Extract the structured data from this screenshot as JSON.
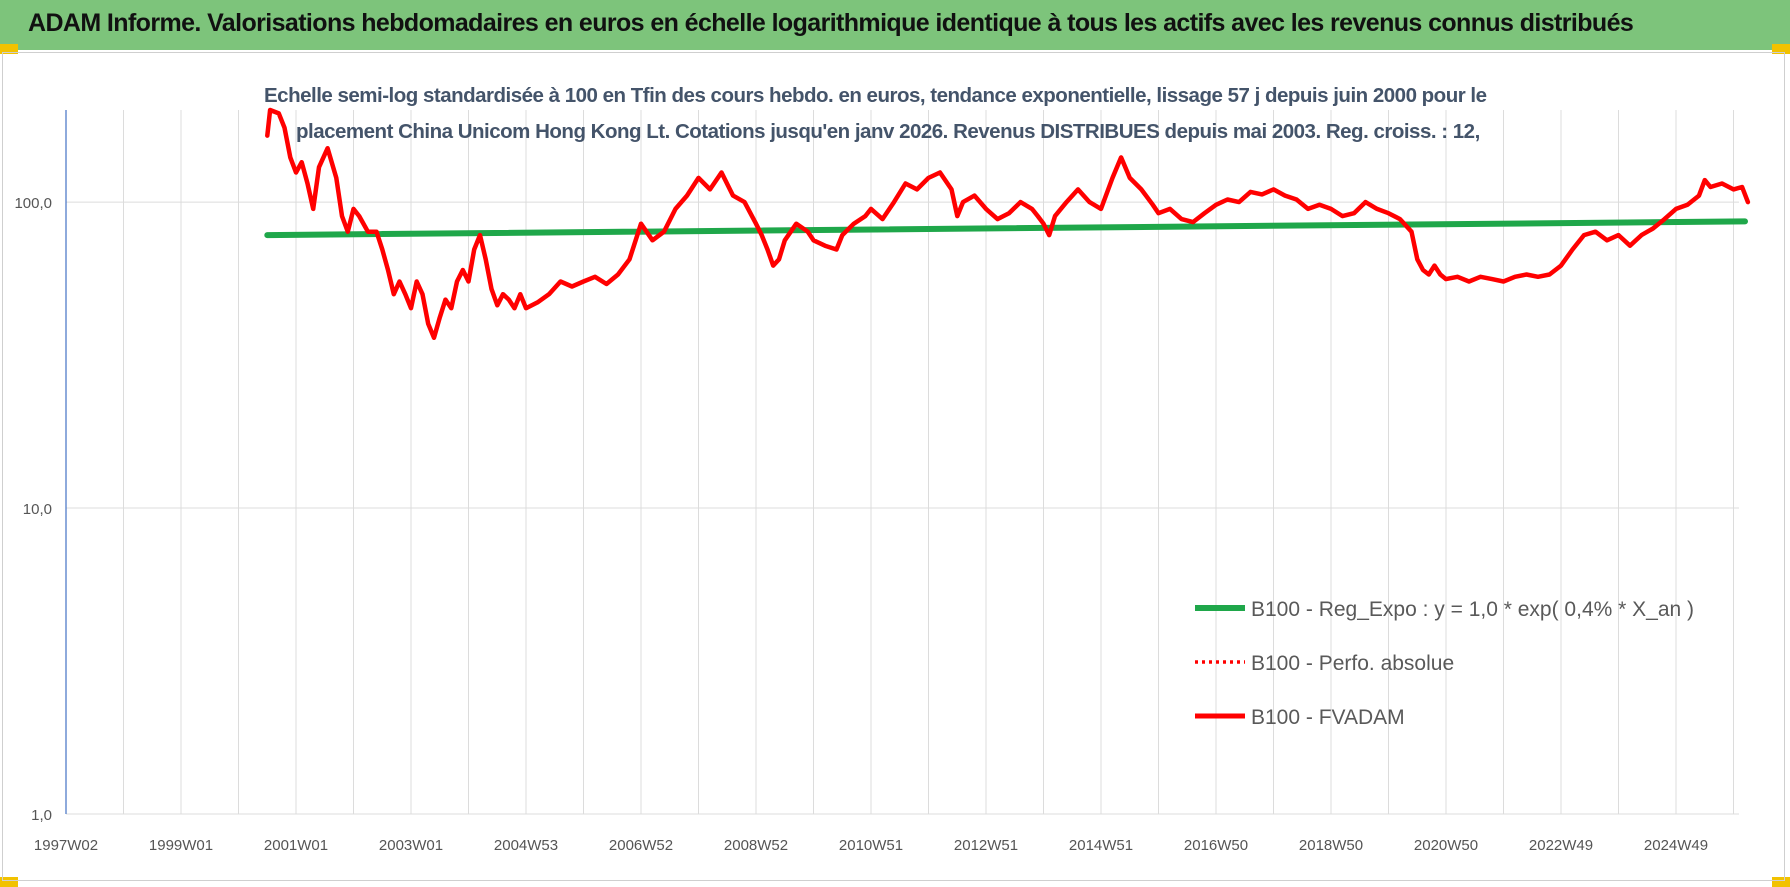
{
  "header": {
    "title": "ADAM Informe. Valorisations hebdomadaires en euros en échelle logarithmique identique à tous les actifs avec les revenus connus distribués"
  },
  "colors": {
    "header_bg": "#7dc47b",
    "accent": "#f2c200",
    "series_fvadam": "#ff0000",
    "series_reg": "#1fa74a",
    "title_text": "#44546a"
  },
  "chart_data": {
    "type": "line",
    "title_line1": "Echelle semi-log standardisée à 100 en Tfin des cours hebdo. en euros, tendance exponentielle, lissage 57 j depuis juin 2000 pour le",
    "title_line2": "placement China Unicom Hong Kong Lt. Cotations jusqu'en janv 2026. Revenus DISTRIBUES depuis mai 2003. Reg. croiss. : 12,",
    "xlabel": "",
    "ylabel": "",
    "yscale": "log",
    "ylim": [
      1,
      200
    ],
    "xlim": [
      1997.0,
      2026.3
    ],
    "grid": "vertical",
    "legend_position": "bottom-right",
    "yticks": [
      {
        "value": 1,
        "label": "1,0"
      },
      {
        "value": 10,
        "label": "10,0"
      },
      {
        "value": 100,
        "label": "100,0"
      }
    ],
    "xticks": [
      {
        "value": 1997.0,
        "label": "1997W02"
      },
      {
        "value": 1999.0,
        "label": "1999W01"
      },
      {
        "value": 2001.0,
        "label": "2001W01"
      },
      {
        "value": 2003.0,
        "label": "2003W01"
      },
      {
        "value": 2005.0,
        "label": "2004W53"
      },
      {
        "value": 2007.0,
        "label": "2006W52"
      },
      {
        "value": 2009.0,
        "label": "2008W52"
      },
      {
        "value": 2011.0,
        "label": "2010W51"
      },
      {
        "value": 2013.0,
        "label": "2012W51"
      },
      {
        "value": 2015.0,
        "label": "2014W51"
      },
      {
        "value": 2017.0,
        "label": "2016W50"
      },
      {
        "value": 2019.0,
        "label": "2018W50"
      },
      {
        "value": 2021.0,
        "label": "2020W50"
      },
      {
        "value": 2023.0,
        "label": "2022W49"
      },
      {
        "value": 2025.0,
        "label": "2024W49"
      }
    ],
    "series": [
      {
        "name": "B100 - Reg_Expo : y = 1,0 * exp( 0,4% *  X_an )",
        "style": "solid",
        "color": "#1fa74a",
        "points": [
          [
            2000.5,
            78
          ],
          [
            2026.2,
            86.5
          ]
        ]
      },
      {
        "name": "B100 - Perfo. absolue",
        "style": "dotted",
        "color": "#ff0000",
        "points": []
      },
      {
        "name": "B100 - FVADAM",
        "style": "solid",
        "color": "#ff0000",
        "points": [
          [
            2000.5,
            165
          ],
          [
            2000.55,
            200
          ],
          [
            2000.7,
            195
          ],
          [
            2000.8,
            175
          ],
          [
            2000.9,
            140
          ],
          [
            2001.0,
            125
          ],
          [
            2001.1,
            135
          ],
          [
            2001.2,
            115
          ],
          [
            2001.3,
            95
          ],
          [
            2001.4,
            130
          ],
          [
            2001.55,
            150
          ],
          [
            2001.7,
            120
          ],
          [
            2001.8,
            90
          ],
          [
            2001.9,
            80
          ],
          [
            2002.0,
            95
          ],
          [
            2002.1,
            90
          ],
          [
            2002.25,
            80
          ],
          [
            2002.4,
            80
          ],
          [
            2002.5,
            70
          ],
          [
            2002.6,
            60
          ],
          [
            2002.7,
            50
          ],
          [
            2002.8,
            55
          ],
          [
            2002.9,
            50
          ],
          [
            2003.0,
            45
          ],
          [
            2003.1,
            55
          ],
          [
            2003.2,
            50
          ],
          [
            2003.3,
            40
          ],
          [
            2003.4,
            36
          ],
          [
            2003.5,
            42
          ],
          [
            2003.6,
            48
          ],
          [
            2003.7,
            45
          ],
          [
            2003.8,
            55
          ],
          [
            2003.9,
            60
          ],
          [
            2004.0,
            55
          ],
          [
            2004.1,
            70
          ],
          [
            2004.2,
            78
          ],
          [
            2004.3,
            65
          ],
          [
            2004.4,
            52
          ],
          [
            2004.5,
            46
          ],
          [
            2004.6,
            50
          ],
          [
            2004.7,
            48
          ],
          [
            2004.8,
            45
          ],
          [
            2004.9,
            50
          ],
          [
            2005.0,
            45
          ],
          [
            2005.2,
            47
          ],
          [
            2005.4,
            50
          ],
          [
            2005.6,
            55
          ],
          [
            2005.8,
            53
          ],
          [
            2006.0,
            55
          ],
          [
            2006.2,
            57
          ],
          [
            2006.4,
            54
          ],
          [
            2006.6,
            58
          ],
          [
            2006.8,
            65
          ],
          [
            2007.0,
            85
          ],
          [
            2007.2,
            75
          ],
          [
            2007.4,
            80
          ],
          [
            2007.6,
            95
          ],
          [
            2007.8,
            105
          ],
          [
            2008.0,
            120
          ],
          [
            2008.2,
            110
          ],
          [
            2008.4,
            125
          ],
          [
            2008.6,
            105
          ],
          [
            2008.8,
            100
          ],
          [
            2009.0,
            85
          ],
          [
            2009.1,
            78
          ],
          [
            2009.2,
            70
          ],
          [
            2009.3,
            62
          ],
          [
            2009.4,
            65
          ],
          [
            2009.5,
            75
          ],
          [
            2009.7,
            85
          ],
          [
            2009.9,
            80
          ],
          [
            2010.0,
            75
          ],
          [
            2010.2,
            72
          ],
          [
            2010.4,
            70
          ],
          [
            2010.5,
            78
          ],
          [
            2010.7,
            85
          ],
          [
            2010.9,
            90
          ],
          [
            2011.0,
            95
          ],
          [
            2011.2,
            88
          ],
          [
            2011.4,
            100
          ],
          [
            2011.6,
            115
          ],
          [
            2011.8,
            110
          ],
          [
            2012.0,
            120
          ],
          [
            2012.2,
            125
          ],
          [
            2012.4,
            110
          ],
          [
            2012.5,
            90
          ],
          [
            2012.6,
            100
          ],
          [
            2012.8,
            105
          ],
          [
            2013.0,
            95
          ],
          [
            2013.2,
            88
          ],
          [
            2013.4,
            92
          ],
          [
            2013.6,
            100
          ],
          [
            2013.8,
            95
          ],
          [
            2013.9,
            90
          ],
          [
            2014.0,
            85
          ],
          [
            2014.1,
            78
          ],
          [
            2014.2,
            90
          ],
          [
            2014.4,
            100
          ],
          [
            2014.6,
            110
          ],
          [
            2014.8,
            100
          ],
          [
            2015.0,
            95
          ],
          [
            2015.2,
            120
          ],
          [
            2015.35,
            140
          ],
          [
            2015.5,
            120
          ],
          [
            2015.7,
            110
          ],
          [
            2015.9,
            98
          ],
          [
            2016.0,
            92
          ],
          [
            2016.2,
            95
          ],
          [
            2016.4,
            88
          ],
          [
            2016.6,
            86
          ],
          [
            2016.8,
            92
          ],
          [
            2017.0,
            98
          ],
          [
            2017.2,
            102
          ],
          [
            2017.4,
            100
          ],
          [
            2017.6,
            108
          ],
          [
            2017.8,
            106
          ],
          [
            2018.0,
            110
          ],
          [
            2018.2,
            105
          ],
          [
            2018.4,
            102
          ],
          [
            2018.6,
            95
          ],
          [
            2018.8,
            98
          ],
          [
            2019.0,
            95
          ],
          [
            2019.2,
            90
          ],
          [
            2019.4,
            92
          ],
          [
            2019.6,
            100
          ],
          [
            2019.8,
            95
          ],
          [
            2020.0,
            92
          ],
          [
            2020.2,
            88
          ],
          [
            2020.4,
            80
          ],
          [
            2020.5,
            65
          ],
          [
            2020.6,
            60
          ],
          [
            2020.7,
            58
          ],
          [
            2020.8,
            62
          ],
          [
            2020.9,
            58
          ],
          [
            2021.0,
            56
          ],
          [
            2021.2,
            57
          ],
          [
            2021.4,
            55
          ],
          [
            2021.6,
            57
          ],
          [
            2021.8,
            56
          ],
          [
            2022.0,
            55
          ],
          [
            2022.2,
            57
          ],
          [
            2022.4,
            58
          ],
          [
            2022.6,
            57
          ],
          [
            2022.8,
            58
          ],
          [
            2023.0,
            62
          ],
          [
            2023.2,
            70
          ],
          [
            2023.4,
            78
          ],
          [
            2023.6,
            80
          ],
          [
            2023.8,
            75
          ],
          [
            2024.0,
            78
          ],
          [
            2024.2,
            72
          ],
          [
            2024.4,
            78
          ],
          [
            2024.6,
            82
          ],
          [
            2024.8,
            88
          ],
          [
            2025.0,
            95
          ],
          [
            2025.2,
            98
          ],
          [
            2025.4,
            105
          ],
          [
            2025.5,
            118
          ],
          [
            2025.6,
            112
          ],
          [
            2025.8,
            115
          ],
          [
            2026.0,
            110
          ],
          [
            2026.15,
            112
          ],
          [
            2026.25,
            100
          ]
        ]
      }
    ]
  }
}
